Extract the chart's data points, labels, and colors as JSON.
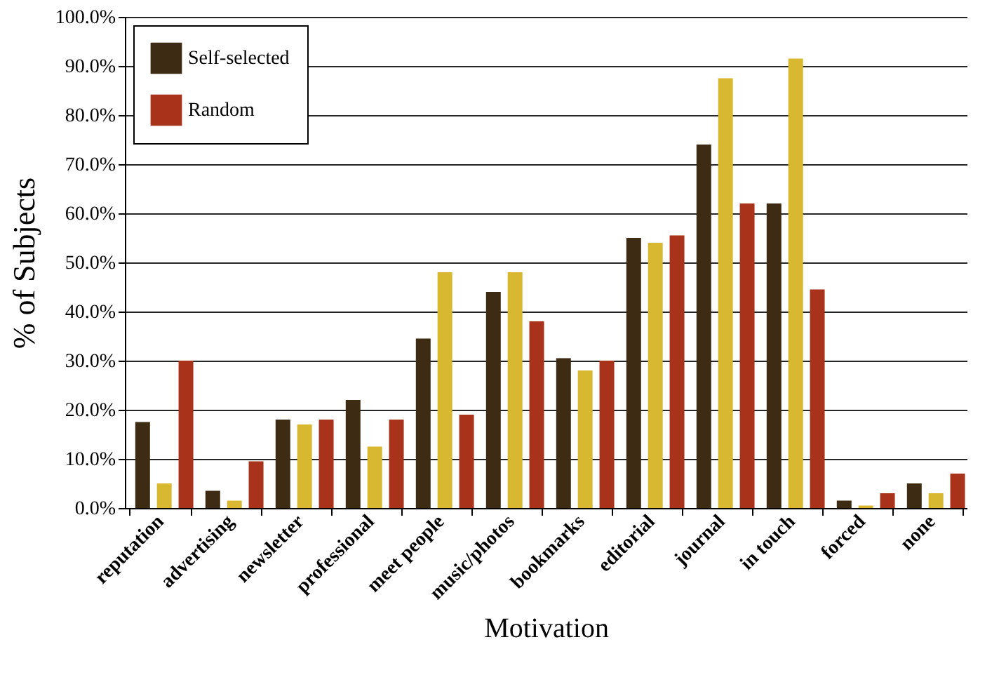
{
  "chart_data": {
    "type": "bar",
    "xlabel": "Motivation",
    "ylabel": "% of Subjects",
    "categories": [
      "reputation",
      "advertising",
      "newsletter",
      "professional",
      "meet people",
      "music/photos",
      "bookmarks",
      "editorial",
      "journal",
      "in touch",
      "forced",
      "none"
    ],
    "series": [
      {
        "name": "Self-selected",
        "color": "#3d2b14",
        "values": [
          17.5,
          3.5,
          18,
          22,
          34.5,
          44,
          30.5,
          55,
          74,
          62,
          1.5,
          5
        ]
      },
      {
        "color": "#d8b830",
        "values": [
          5,
          1.5,
          17,
          12.5,
          48,
          48,
          28,
          54,
          87.5,
          91.5,
          0.5,
          3
        ]
      },
      {
        "name": "Random",
        "color": "#a8321a",
        "values": [
          30,
          9.5,
          18,
          18,
          19,
          38,
          30,
          55.5,
          62,
          44.5,
          3,
          7
        ]
      }
    ],
    "ylim": [
      0,
      100
    ],
    "yticks": [
      {
        "value": 0,
        "label": "0.0%"
      },
      {
        "value": 10,
        "label": "10.0%"
      },
      {
        "value": 20,
        "label": "20.0%"
      },
      {
        "value": 30,
        "label": "30.0%"
      },
      {
        "value": 40,
        "label": "40.0%"
      },
      {
        "value": 50,
        "label": "50.0%"
      },
      {
        "value": 60,
        "label": "60.0%"
      },
      {
        "value": 70,
        "label": "70.0%"
      },
      {
        "value": 80,
        "label": "80.0%"
      },
      {
        "value": 90,
        "label": "90.0%"
      },
      {
        "value": 100,
        "label": "100.0%"
      }
    ],
    "grid": "y",
    "legend": "top left"
  }
}
